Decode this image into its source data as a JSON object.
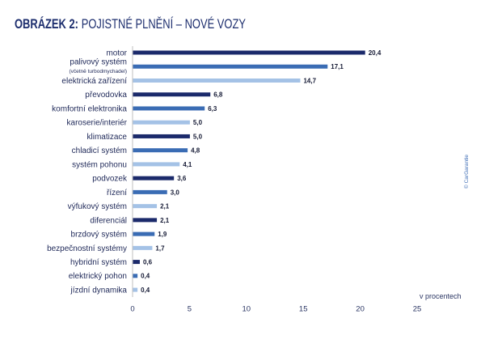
{
  "copyright": "© CarGarantie",
  "colors": {
    "title": "#1d2e6e",
    "label_text": "#1e2858",
    "value_text": "#151a35",
    "tick_text": "#2a3563",
    "axis_line": "#b0b0b0",
    "copyright": "#3d6cb5"
  },
  "chart_data": {
    "type": "bar",
    "orientation": "horizontal",
    "figure_label": "OBRÁZEK 2:",
    "title": "POJISTNÉ PLNĚNÍ – NOVÉ VOZY",
    "categories": [
      "motor",
      "palivový systém",
      "elektrická zařízení",
      "převodovka",
      "komfortní elektronika",
      "karoserie/interiér",
      "klimatizace",
      "chladicí systém",
      "systém pohonu",
      "podvozek",
      "řízení",
      "výfukový systém",
      "diferenciál",
      "brzdový systém",
      "bezpečnostní systémy",
      "hybridní systém",
      "elektrický pohon",
      "jízdní dynamika"
    ],
    "category_notes": [
      "",
      "(včetně turbodmychadel)",
      "",
      "",
      "",
      "",
      "",
      "",
      "",
      "",
      "",
      "",
      "",
      "",
      "",
      "",
      "",
      ""
    ],
    "values": [
      20.4,
      17.1,
      14.7,
      6.8,
      6.3,
      5.0,
      5.0,
      4.8,
      4.1,
      3.6,
      3.0,
      2.1,
      2.1,
      1.9,
      1.7,
      0.6,
      0.4,
      0.4
    ],
    "value_labels": [
      "20,4",
      "17,1",
      "14,7",
      "6,8",
      "6,3",
      "5,0",
      "5,0",
      "4,8",
      "4,1",
      "3,6",
      "3,0",
      "2,1",
      "2,1",
      "1,9",
      "1,7",
      "0,6",
      "0,4",
      "0,4"
    ],
    "xlabel": "v procentech",
    "xlim": [
      0,
      25
    ],
    "x_ticks": [
      0,
      5,
      10,
      15,
      20,
      25
    ],
    "grid": false,
    "legend": false,
    "bar_colors": [
      "#1b2a6b",
      "#3a6cb4",
      "#a4c2e6",
      "#1b2a6b",
      "#3a6cb4",
      "#a4c2e6",
      "#1b2a6b",
      "#3a6cb4",
      "#a4c2e6",
      "#1b2a6b",
      "#3a6cb4",
      "#a4c2e6",
      "#1b2a6b",
      "#3a6cb4",
      "#a4c2e6",
      "#1b2a6b",
      "#3a6cb4",
      "#a4c2e6"
    ]
  }
}
